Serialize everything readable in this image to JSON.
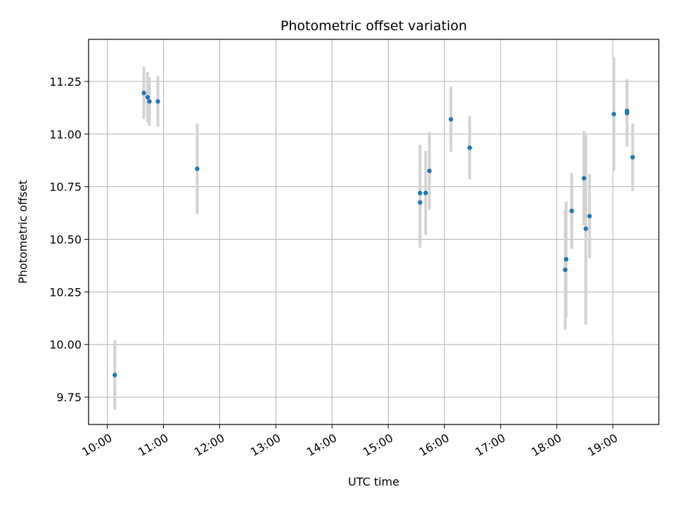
{
  "chart_data": {
    "type": "scatter",
    "title": "Photometric offset variation",
    "xlabel": "UTC time",
    "ylabel": "Photometric offset",
    "x_tick_labels": [
      "10:00",
      "11:00",
      "12:00",
      "13:00",
      "14:00",
      "15:00",
      "16:00",
      "17:00",
      "18:00",
      "19:00"
    ],
    "y_tick_labels": [
      "9.75",
      "10.00",
      "10.25",
      "10.50",
      "10.75",
      "11.00",
      "11.25"
    ],
    "x_ticks": [
      "10:00",
      "11:00",
      "12:00",
      "13:00",
      "14:00",
      "15:00",
      "16:00",
      "17:00",
      "18:00",
      "19:00"
    ],
    "y_ticks": [
      9.75,
      10.0,
      10.25,
      10.5,
      10.75,
      11.0,
      11.25
    ],
    "xlim": [
      "09:40",
      "19:49"
    ],
    "ylim": [
      9.62,
      11.45
    ],
    "grid": true,
    "colors": {
      "point": "#1f77b4",
      "errorbar": "#d3d3d3",
      "grid": "#b0b0b0"
    },
    "points": [
      {
        "x": "10:08",
        "y": 9.855,
        "yerr": 0.165
      },
      {
        "x": "10:39",
        "y": 11.195,
        "yerr": 0.125
      },
      {
        "x": "10:43",
        "y": 11.175,
        "yerr": 0.12
      },
      {
        "x": "10:45",
        "y": 11.155,
        "yerr": 0.115
      },
      {
        "x": "10:54",
        "y": 11.155,
        "yerr": 0.12
      },
      {
        "x": "11:36",
        "y": 10.835,
        "yerr": 0.215
      },
      {
        "x": "15:34",
        "y": 10.72,
        "yerr": 0.23
      },
      {
        "x": "15:34",
        "y": 10.675,
        "yerr": 0.215
      },
      {
        "x": "15:40",
        "y": 10.72,
        "yerr": 0.2
      },
      {
        "x": "15:44",
        "y": 10.825,
        "yerr": 0.185
      },
      {
        "x": "16:07",
        "y": 11.07,
        "yerr": 0.155
      },
      {
        "x": "16:27",
        "y": 10.935,
        "yerr": 0.15
      },
      {
        "x": "18:09",
        "y": 10.355,
        "yerr": 0.285
      },
      {
        "x": "18:10",
        "y": 10.405,
        "yerr": 0.275
      },
      {
        "x": "18:16",
        "y": 10.635,
        "yerr": 0.18
      },
      {
        "x": "18:29",
        "y": 10.79,
        "yerr": 0.225
      },
      {
        "x": "18:31",
        "y": 10.55,
        "yerr": 0.455
      },
      {
        "x": "18:35",
        "y": 10.61,
        "yerr": 0.2
      },
      {
        "x": "19:01",
        "y": 11.095,
        "yerr": 0.27
      },
      {
        "x": "19:15",
        "y": 11.11,
        "yerr": 0.15
      },
      {
        "x": "19:15",
        "y": 11.1,
        "yerr": 0.16
      },
      {
        "x": "19:21",
        "y": 10.89,
        "yerr": 0.16
      }
    ]
  }
}
